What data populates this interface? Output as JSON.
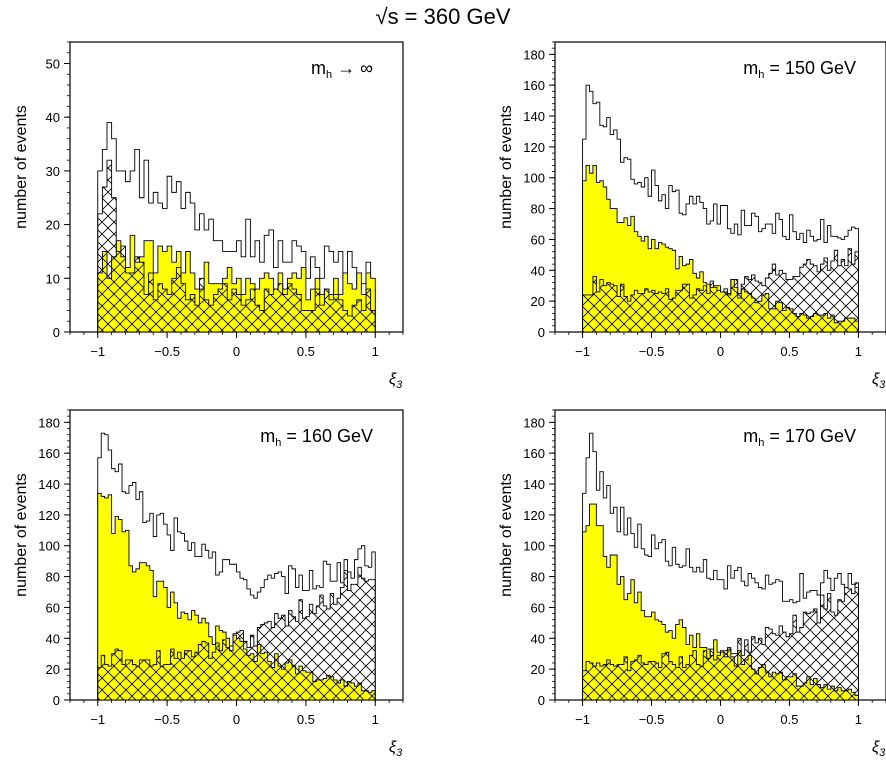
{
  "figure": {
    "title": "√s = 360 GeV"
  },
  "colors": {
    "fill_yellow": "#ffff00",
    "line": "#000000",
    "background": "#ffffff"
  },
  "chart_data": [
    {
      "type": "histogram",
      "label": "m_h → ∞",
      "xlabel": "ξ3",
      "ylabel": "number of events",
      "xlim": [
        -1.2,
        1.2
      ],
      "ylim": [
        0,
        54
      ],
      "yticks": [
        0,
        10,
        20,
        30,
        40,
        50
      ],
      "xticks": [
        -1,
        -0.5,
        0,
        0.5,
        1
      ],
      "xtick_labels": [
        "−1",
        "−0.5",
        "0",
        "0.5",
        "1"
      ],
      "bins": 60,
      "bin_range": [
        -1,
        1
      ],
      "series": [
        {
          "style": "outline",
          "control": [
            [
              -1,
              30
            ],
            [
              -0.93,
              44
            ],
            [
              -0.85,
              36
            ],
            [
              -0.75,
              30
            ],
            [
              -0.6,
              28
            ],
            [
              -0.4,
              25
            ],
            [
              -0.2,
              22
            ],
            [
              0,
              19
            ],
            [
              0.2,
              16
            ],
            [
              0.4,
              14
            ],
            [
              0.6,
              13
            ],
            [
              0.8,
              12
            ],
            [
              1,
              11
            ]
          ]
        },
        {
          "style": "yellow",
          "control": [
            [
              -1,
              12
            ],
            [
              -0.85,
              15
            ],
            [
              -0.6,
              13
            ],
            [
              -0.4,
              12
            ],
            [
              -0.2,
              11
            ],
            [
              0,
              10
            ],
            [
              0.3,
              9
            ],
            [
              0.6,
              9
            ],
            [
              1,
              9
            ]
          ]
        },
        {
          "style": "hatched",
          "control": [
            [
              -1,
              22
            ],
            [
              -0.93,
              31
            ],
            [
              -0.85,
              16
            ],
            [
              -0.7,
              10
            ],
            [
              -0.5,
              9
            ],
            [
              -0.2,
              8
            ],
            [
              0,
              7
            ],
            [
              0.3,
              7
            ],
            [
              0.6,
              6
            ],
            [
              1,
              6
            ]
          ]
        }
      ]
    },
    {
      "type": "histogram",
      "label": "m_h = 150 GeV",
      "xlabel": "ξ3",
      "ylabel": "number of events",
      "xlim": [
        -1.2,
        1.2
      ],
      "ylim": [
        0,
        188
      ],
      "yticks": [
        0,
        20,
        40,
        60,
        80,
        100,
        120,
        140,
        160,
        180
      ],
      "xticks": [
        -1,
        -0.5,
        0,
        0.5,
        1
      ],
      "xtick_labels": [
        "−1",
        "−0.5",
        "0",
        "0.5",
        "1"
      ],
      "bins": 80,
      "bin_range": [
        -1,
        1
      ],
      "series": [
        {
          "style": "outline",
          "control": [
            [
              -1,
              120
            ],
            [
              -0.95,
              160
            ],
            [
              -0.85,
              135
            ],
            [
              -0.7,
              110
            ],
            [
              -0.5,
              95
            ],
            [
              -0.3,
              85
            ],
            [
              -0.1,
              75
            ],
            [
              0.1,
              72
            ],
            [
              0.3,
              70
            ],
            [
              0.5,
              68
            ],
            [
              0.7,
              65
            ],
            [
              0.9,
              62
            ],
            [
              1,
              60
            ]
          ]
        },
        {
          "style": "yellow",
          "control": [
            [
              -1,
              100
            ],
            [
              -0.95,
              110
            ],
            [
              -0.85,
              95
            ],
            [
              -0.7,
              75
            ],
            [
              -0.5,
              55
            ],
            [
              -0.3,
              45
            ],
            [
              -0.1,
              35
            ],
            [
              0.1,
              28
            ],
            [
              0.3,
              22
            ],
            [
              0.5,
              15
            ],
            [
              0.7,
              10
            ],
            [
              0.9,
              8
            ],
            [
              1,
              6
            ]
          ]
        },
        {
          "style": "hatched",
          "control": [
            [
              -1,
              25
            ],
            [
              -0.9,
              32
            ],
            [
              -0.7,
              25
            ],
            [
              -0.5,
              25
            ],
            [
              -0.3,
              27
            ],
            [
              -0.1,
              28
            ],
            [
              0.1,
              30
            ],
            [
              0.3,
              35
            ],
            [
              0.5,
              40
            ],
            [
              0.7,
              45
            ],
            [
              0.9,
              50
            ],
            [
              1,
              52
            ]
          ]
        }
      ]
    },
    {
      "type": "histogram",
      "label": "m_h = 160 GeV",
      "xlabel": "ξ3",
      "ylabel": "number of events",
      "xlim": [
        -1.2,
        1.2
      ],
      "ylim": [
        0,
        188
      ],
      "yticks": [
        0,
        20,
        40,
        60,
        80,
        100,
        120,
        140,
        160,
        180
      ],
      "xticks": [
        -1,
        -0.5,
        0,
        0.5,
        1
      ],
      "xtick_labels": [
        "−1",
        "−0.5",
        "0",
        "0.5",
        "1"
      ],
      "bins": 80,
      "bin_range": [
        -1,
        1
      ],
      "series": [
        {
          "style": "outline",
          "control": [
            [
              -1,
              160
            ],
            [
              -0.95,
              170
            ],
            [
              -0.85,
              145
            ],
            [
              -0.7,
              125
            ],
            [
              -0.5,
              110
            ],
            [
              -0.3,
              100
            ],
            [
              -0.1,
              85
            ],
            [
              0.1,
              75
            ],
            [
              0.3,
              75
            ],
            [
              0.5,
              80
            ],
            [
              0.7,
              82
            ],
            [
              0.9,
              90
            ],
            [
              1,
              95
            ]
          ]
        },
        {
          "style": "yellow",
          "control": [
            [
              -1,
              140
            ],
            [
              -0.95,
              135
            ],
            [
              -0.85,
              110
            ],
            [
              -0.7,
              85
            ],
            [
              -0.5,
              65
            ],
            [
              -0.3,
              50
            ],
            [
              -0.1,
              40
            ],
            [
              0.1,
              32
            ],
            [
              0.3,
              25
            ],
            [
              0.5,
              18
            ],
            [
              0.7,
              12
            ],
            [
              0.9,
              8
            ],
            [
              1,
              6
            ]
          ]
        },
        {
          "style": "hatched",
          "control": [
            [
              -1,
              22
            ],
            [
              -0.9,
              28
            ],
            [
              -0.7,
              25
            ],
            [
              -0.5,
              28
            ],
            [
              -0.3,
              30
            ],
            [
              -0.1,
              35
            ],
            [
              0.1,
              40
            ],
            [
              0.3,
              50
            ],
            [
              0.5,
              60
            ],
            [
              0.7,
              70
            ],
            [
              0.9,
              80
            ],
            [
              1,
              85
            ]
          ]
        }
      ]
    },
    {
      "type": "histogram",
      "label": "m_h = 170 GeV",
      "xlabel": "ξ3",
      "ylabel": "number of events",
      "xlim": [
        -1.2,
        1.2
      ],
      "ylim": [
        0,
        188
      ],
      "yticks": [
        0,
        20,
        40,
        60,
        80,
        100,
        120,
        140,
        160,
        180
      ],
      "xticks": [
        -1,
        -0.5,
        0,
        0.5,
        1
      ],
      "xtick_labels": [
        "−1",
        "−0.5",
        "0",
        "0.5",
        "1"
      ],
      "bins": 80,
      "bin_range": [
        -1,
        1
      ],
      "series": [
        {
          "style": "outline",
          "control": [
            [
              -1,
              130
            ],
            [
              -0.95,
              165
            ],
            [
              -0.85,
              140
            ],
            [
              -0.7,
              115
            ],
            [
              -0.5,
              100
            ],
            [
              -0.3,
              90
            ],
            [
              -0.1,
              82
            ],
            [
              0.1,
              78
            ],
            [
              0.3,
              72
            ],
            [
              0.5,
              72
            ],
            [
              0.7,
              74
            ],
            [
              0.9,
              76
            ],
            [
              1,
              78
            ]
          ]
        },
        {
          "style": "yellow",
          "control": [
            [
              -1,
              110
            ],
            [
              -0.95,
              125
            ],
            [
              -0.85,
              100
            ],
            [
              -0.7,
              75
            ],
            [
              -0.5,
              55
            ],
            [
              -0.3,
              45
            ],
            [
              -0.1,
              35
            ],
            [
              0.1,
              28
            ],
            [
              0.3,
              20
            ],
            [
              0.5,
              14
            ],
            [
              0.7,
              10
            ],
            [
              0.9,
              6
            ],
            [
              1,
              5
            ]
          ]
        },
        {
          "style": "hatched",
          "control": [
            [
              -1,
              20
            ],
            [
              -0.9,
              26
            ],
            [
              -0.7,
              24
            ],
            [
              -0.5,
              25
            ],
            [
              -0.3,
              26
            ],
            [
              -0.1,
              28
            ],
            [
              0.1,
              32
            ],
            [
              0.3,
              40
            ],
            [
              0.5,
              48
            ],
            [
              0.7,
              58
            ],
            [
              0.9,
              66
            ],
            [
              1,
              70
            ]
          ]
        }
      ]
    }
  ]
}
